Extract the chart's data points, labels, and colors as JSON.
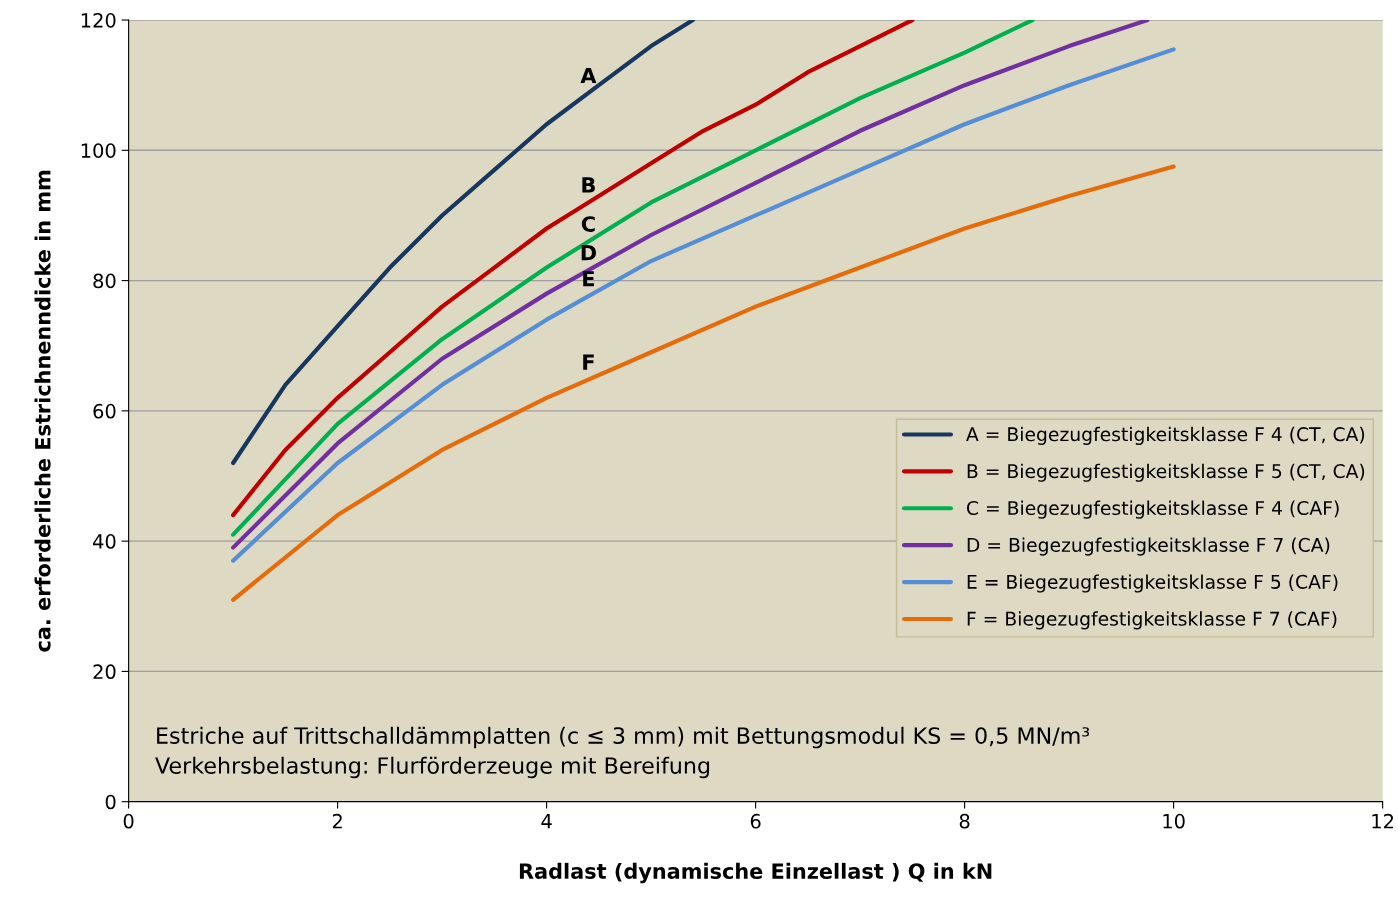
{
  "chart_data": {
    "type": "line",
    "xlabel": "Radlast (dynamische Einzellast ) Q in kN",
    "ylabel": "ca. erforderliche Estrichnenndicke in mm",
    "xlim": [
      0,
      12
    ],
    "xticks": [
      0,
      2,
      4,
      6,
      8,
      10,
      12
    ],
    "ylim": [
      0,
      120
    ],
    "yticks": [
      0,
      20,
      40,
      60,
      80,
      100,
      120
    ],
    "grid": "y",
    "legend": "right",
    "marker": "none",
    "line_style": "solid",
    "series": [
      {
        "name": "A = Biegezugfestigkeitsklasse F 4 (CT, CA)",
        "color": "#17375e",
        "x": [
          1,
          1.5,
          2,
          2.5,
          3,
          3.5,
          4,
          4.5,
          5,
          5.4
        ],
        "values": [
          52,
          64,
          73,
          82,
          90,
          97,
          104,
          110,
          116,
          120
        ]
      },
      {
        "name": "B = Biegezugfestigkeitsklasse F 5 (CT, CA)",
        "color": "#c00000",
        "x": [
          1,
          1.5,
          2,
          2.5,
          3,
          3.5,
          4,
          4.5,
          5,
          5.5,
          6,
          6.5,
          7,
          7.5
        ],
        "values": [
          44,
          54,
          62,
          69,
          76,
          82,
          88,
          93,
          98,
          103,
          107,
          112,
          116,
          120
        ]
      },
      {
        "name": "C = Biegezugfestigkeitsklasse F 4 (CAF)",
        "color": "#00b050",
        "x": [
          1,
          2,
          3,
          4,
          5,
          6,
          7,
          8,
          8.65
        ],
        "values": [
          41,
          58,
          71,
          82,
          92,
          100,
          108,
          115,
          120
        ]
      },
      {
        "name": "D = Biegezugfestigkeitsklasse F 7 (CA)",
        "color": "#7030a0",
        "x": [
          1,
          2,
          3,
          4,
          5,
          6,
          7,
          8,
          9,
          9.75
        ],
        "values": [
          39,
          55,
          68,
          78,
          87,
          95,
          103,
          110,
          116,
          120
        ]
      },
      {
        "name": "E = Biegezugfestigkeitsklasse F 5 (CAF)",
        "color": "#558ed5",
        "x": [
          1,
          2,
          3,
          4,
          5,
          6,
          7,
          8,
          9,
          10
        ],
        "values": [
          37,
          52,
          64,
          74,
          83,
          90,
          97,
          104,
          110,
          115.5
        ]
      },
      {
        "name": "F = Biegezugfestigkeitsklasse F 7 (CAF)",
        "color": "#e46c0a",
        "x": [
          1,
          2,
          3,
          4,
          5,
          6,
          7,
          8,
          9,
          10
        ],
        "values": [
          31,
          44,
          54,
          62,
          69,
          76,
          82,
          88,
          93,
          97.5
        ]
      }
    ],
    "annotations": [
      "A",
      "B",
      "C",
      "D",
      "E",
      "F",
      "Estriche auf Trittschalldämmplatten (c ≤ 3 mm) mit Bettungsmodul KS = 0,5 MN/m³\nVerkehrsbelastung: Flurförderzeuge mit Bereifung"
    ]
  }
}
